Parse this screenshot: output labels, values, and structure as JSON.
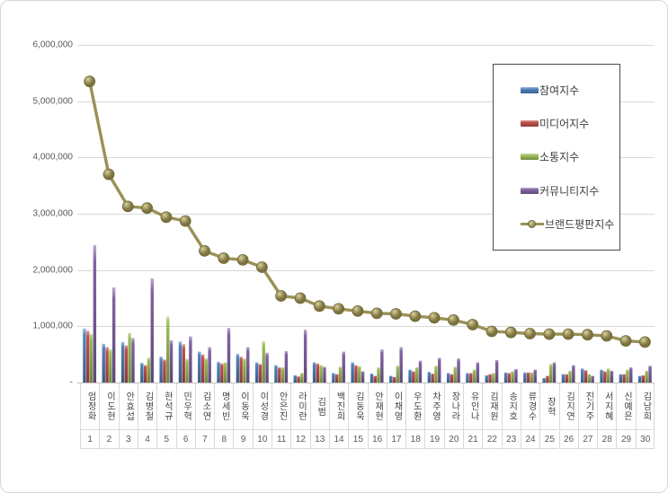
{
  "chart_data": {
    "type": "bar",
    "subtype": "grouped bars with overlay line",
    "title": "",
    "xlabel": "",
    "ylabel": "",
    "grid": "horizontal",
    "y_axis": {
      "min": 0,
      "max": 6000000,
      "tick_interval": 1000000,
      "tick_labels": [
        "-",
        "1,000,000",
        "2,000,000",
        "3,000,000",
        "4,000,000",
        "5,000,000",
        "6,000,000"
      ]
    },
    "legend": {
      "position": "upper-right",
      "border": true
    },
    "categories": [
      "엄정화",
      "이도현",
      "안효섭",
      "김병철",
      "한석규",
      "민우혁",
      "김소연",
      "명세빈",
      "이동욱",
      "이성경",
      "안은진",
      "라미란",
      "김범",
      "백진희",
      "김동욱",
      "안재현",
      "이채영",
      "우도환",
      "차주영",
      "장나라",
      "유인나",
      "김재원",
      "송지호",
      "류경수",
      "장혁",
      "김지연",
      "진기주",
      "서지혜",
      "신예은",
      "김남희"
    ],
    "ranks": [
      "1",
      "2",
      "3",
      "4",
      "5",
      "6",
      "7",
      "8",
      "9",
      "10",
      "11",
      "12",
      "13",
      "14",
      "15",
      "16",
      "17",
      "18",
      "19",
      "20",
      "21",
      "22",
      "23",
      "24",
      "25",
      "26",
      "27",
      "28",
      "29",
      "30"
    ],
    "series": [
      {
        "name": "참여지수",
        "type": "bar",
        "color": "#4f81bd",
        "values": [
          960000,
          690000,
          720000,
          350000,
          460000,
          730000,
          550000,
          370000,
          510000,
          360000,
          310000,
          130000,
          360000,
          170000,
          360000,
          160000,
          120000,
          230000,
          190000,
          170000,
          170000,
          130000,
          180000,
          180000,
          80000,
          150000,
          250000,
          230000,
          150000,
          120000
        ]
      },
      {
        "name": "미디어지수",
        "type": "bar",
        "color": "#c0504d",
        "values": [
          920000,
          630000,
          660000,
          310000,
          410000,
          680000,
          500000,
          340000,
          460000,
          330000,
          270000,
          110000,
          340000,
          150000,
          310000,
          120000,
          100000,
          200000,
          160000,
          150000,
          170000,
          150000,
          170000,
          180000,
          120000,
          150000,
          220000,
          200000,
          150000,
          130000
        ]
      },
      {
        "name": "소통지수",
        "type": "bar",
        "color": "#9bbb59",
        "values": [
          860000,
          590000,
          880000,
          440000,
          1170000,
          420000,
          430000,
          360000,
          430000,
          730000,
          270000,
          170000,
          310000,
          280000,
          290000,
          270000,
          300000,
          270000,
          300000,
          280000,
          230000,
          170000,
          200000,
          180000,
          330000,
          210000,
          150000,
          250000,
          230000,
          210000
        ]
      },
      {
        "name": "커뮤니티지수",
        "type": "bar",
        "color": "#8064a2",
        "values": [
          2440000,
          1690000,
          790000,
          1850000,
          750000,
          820000,
          630000,
          970000,
          630000,
          530000,
          560000,
          940000,
          280000,
          550000,
          200000,
          590000,
          630000,
          390000,
          440000,
          430000,
          360000,
          400000,
          240000,
          230000,
          360000,
          310000,
          120000,
          210000,
          270000,
          300000
        ]
      },
      {
        "name": "브랜드평판지수",
        "type": "line",
        "color": "#9a9156",
        "values": [
          5350000,
          3700000,
          3130000,
          3100000,
          2940000,
          2870000,
          2340000,
          2210000,
          2180000,
          2050000,
          1540000,
          1500000,
          1360000,
          1310000,
          1270000,
          1230000,
          1220000,
          1180000,
          1150000,
          1110000,
          1030000,
          910000,
          890000,
          870000,
          860000,
          860000,
          850000,
          830000,
          740000,
          720000
        ]
      }
    ]
  }
}
